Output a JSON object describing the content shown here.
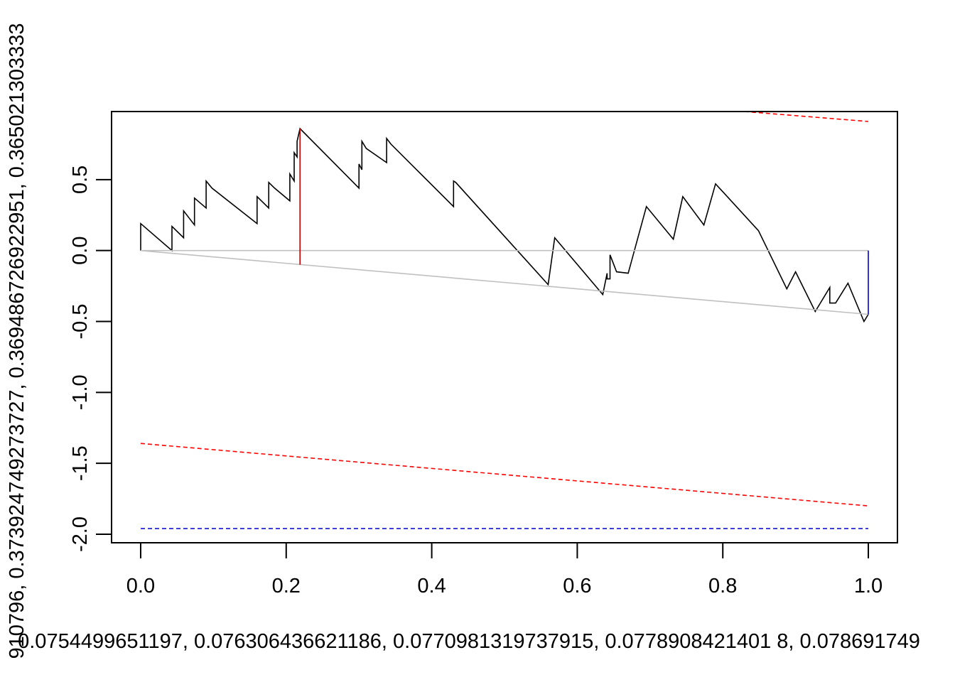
{
  "chart_data": {
    "type": "line",
    "title": "",
    "xlabel": "0.0754499651197, 0.076306436621186, 0.0770981319737915, 0.0778908421401 8, 0.078691749",
    "ylabel": "910796, 0.373924749273727, 0.369486726922951, 0.365021303333",
    "xlim": [
      -0.04,
      1.04
    ],
    "ylim": [
      -2.06,
      0.98
    ],
    "x_ticks": [
      0.0,
      0.2,
      0.4,
      0.6,
      0.8,
      1.0
    ],
    "x_tick_labels": [
      "0.0",
      "0.2",
      "0.4",
      "0.6",
      "0.8",
      "1.0"
    ],
    "y_ticks": [
      0.5,
      0.0,
      -0.5,
      -1.0,
      -1.5,
      -2.0
    ],
    "y_tick_labels": [
      "0.5",
      "0.0",
      "-0.5",
      "-1.0",
      "-1.5",
      "-2.0"
    ],
    "grid": false,
    "legend": "none",
    "colors": {
      "process": "#000000",
      "baseline": "#c0c0c0",
      "red": "#ff0000",
      "max_segment": "#cc0000",
      "blue": "#0000cc"
    },
    "series": [
      {
        "role": "process",
        "color": "#000000",
        "x": [
          0.0,
          0.0,
          0.043,
          0.043,
          0.059,
          0.059,
          0.074,
          0.074,
          0.09,
          0.09,
          0.098,
          0.098,
          0.16,
          0.16,
          0.176,
          0.176,
          0.184,
          0.184,
          0.205,
          0.205,
          0.211,
          0.211,
          0.215,
          0.215,
          0.219,
          0.219,
          0.3,
          0.3,
          0.304,
          0.304,
          0.31,
          0.31,
          0.338,
          0.338,
          0.344,
          0.344,
          0.43,
          0.43,
          0.433,
          0.433,
          0.56,
          0.56,
          0.569,
          0.569,
          0.635,
          0.635,
          0.641,
          0.641,
          0.645,
          0.645,
          0.654,
          0.654,
          0.67,
          0.67,
          0.695,
          0.695,
          0.732,
          0.732,
          0.745,
          0.745,
          0.774,
          0.774,
          0.79,
          0.79,
          0.849,
          0.849,
          0.888,
          0.888,
          0.9,
          0.9,
          0.927,
          0.927,
          0.947,
          0.947,
          0.955,
          0.955,
          0.972,
          0.972,
          0.994,
          0.994,
          1.0
        ],
        "y": [
          0.0,
          0.19,
          0.0,
          0.17,
          0.09,
          0.28,
          0.18,
          0.37,
          0.3,
          0.49,
          0.44,
          0.44,
          0.19,
          0.38,
          0.3,
          0.48,
          0.44,
          0.44,
          0.35,
          0.54,
          0.49,
          0.69,
          0.66,
          0.77,
          0.86,
          0.86,
          0.44,
          0.61,
          0.57,
          0.77,
          0.72,
          0.72,
          0.62,
          0.79,
          0.75,
          0.75,
          0.31,
          0.49,
          0.48,
          0.48,
          -0.24,
          -0.24,
          0.09,
          0.09,
          -0.31,
          -0.31,
          -0.16,
          -0.2,
          -0.2,
          -0.03,
          -0.15,
          -0.15,
          -0.16,
          -0.16,
          0.31,
          0.31,
          0.08,
          0.08,
          0.38,
          0.38,
          0.18,
          0.18,
          0.47,
          0.47,
          0.14,
          0.14,
          -0.27,
          -0.27,
          -0.15,
          -0.15,
          -0.43,
          -0.43,
          -0.26,
          -0.37,
          -0.37,
          -0.37,
          -0.23,
          -0.23,
          -0.5,
          -0.5,
          -0.45
        ]
      },
      {
        "role": "zero-line",
        "color": "#c0c0c0",
        "x": [
          0.0,
          1.0
        ],
        "y": [
          0.0,
          0.0
        ]
      },
      {
        "role": "trend-line",
        "color": "#c0c0c0",
        "x": [
          0.0,
          1.0
        ],
        "y": [
          0.0,
          -0.45
        ]
      },
      {
        "role": "upper-bound",
        "color": "#ff0000",
        "dash": true,
        "x": [
          0.83,
          1.0
        ],
        "y": [
          0.98,
          0.91
        ]
      },
      {
        "role": "lower-bound",
        "color": "#ff0000",
        "dash": true,
        "x": [
          0.0,
          1.0
        ],
        "y": [
          -1.36,
          -1.8
        ]
      },
      {
        "role": "critical-level",
        "color": "#0000cc",
        "dash": true,
        "x": [
          0.0,
          1.0
        ],
        "y": [
          -1.96,
          -1.96
        ]
      },
      {
        "role": "max-deviation",
        "color": "#cc0000",
        "x": [
          0.219,
          0.219
        ],
        "y": [
          0.86,
          -0.1
        ]
      },
      {
        "role": "end-deviation",
        "color": "#0000cc",
        "x": [
          1.0,
          1.0
        ],
        "y": [
          0.0,
          -0.45
        ]
      }
    ]
  }
}
